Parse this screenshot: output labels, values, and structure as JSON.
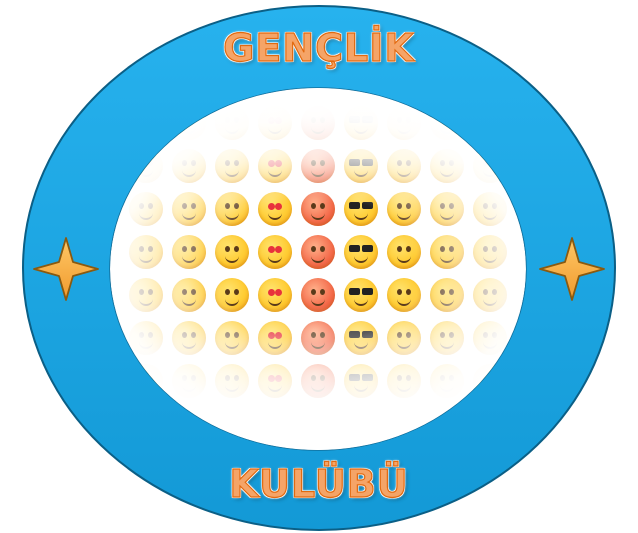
{
  "badge": {
    "top_text": "GENÇLİK",
    "bottom_text": "KULÜBÜ",
    "colors": {
      "ring": "#1aa3e0",
      "ring_outline": "#0b5f86",
      "text_fill": "#f5a467",
      "text_stroke": "#e26a10",
      "star_fill": "#f6b04a",
      "star_outline": "#8a5a10"
    },
    "icons": [
      "four-point-star-icon",
      "emoji-face-icon"
    ]
  }
}
